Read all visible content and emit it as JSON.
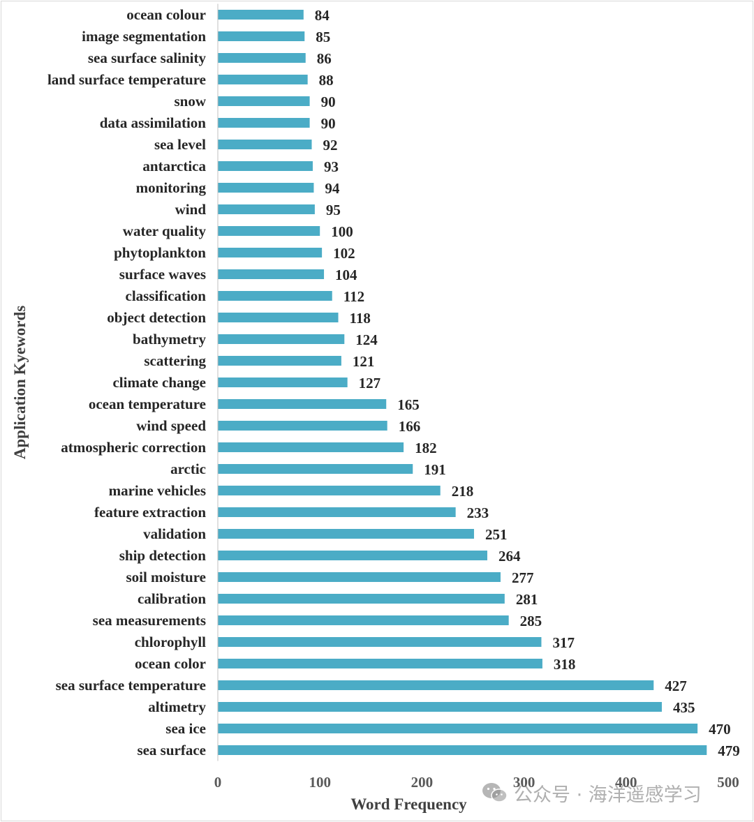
{
  "chart_data": {
    "type": "bar",
    "orientation": "horizontal",
    "categories": [
      "ocean colour",
      "image segmentation",
      "sea surface salinity",
      "land surface temperature",
      "snow",
      "data assimilation",
      "sea level",
      "antarctica",
      "monitoring",
      "wind",
      "water quality",
      "phytoplankton",
      "surface waves",
      "classification",
      "object detection",
      "bathymetry",
      "scattering",
      "climate change",
      "ocean temperature",
      "wind speed",
      "atmospheric correction",
      "arctic",
      "marine vehicles",
      "feature extraction",
      "validation",
      "ship detection",
      "soil moisture",
      "calibration",
      "sea measurements",
      "chlorophyll",
      "ocean color",
      "sea surface temperature",
      "altimetry",
      "sea ice",
      "sea surface"
    ],
    "values": [
      84,
      85,
      86,
      88,
      90,
      90,
      92,
      93,
      94,
      95,
      100,
      102,
      104,
      112,
      118,
      124,
      121,
      127,
      165,
      166,
      182,
      191,
      218,
      233,
      251,
      264,
      277,
      281,
      285,
      317,
      318,
      427,
      435,
      470,
      479
    ],
    "title": "",
    "xlabel": "Word Frequency",
    "ylabel": "Application Kyewords",
    "xlim": [
      0,
      500
    ],
    "xticks": [
      0,
      100,
      200,
      300,
      400,
      500
    ],
    "grid": false,
    "bar_color": "#4bacc6",
    "data_labels": true
  },
  "watermark": {
    "icon": "wechat-icon",
    "text": "公众号 · 海洋遥感学习"
  }
}
